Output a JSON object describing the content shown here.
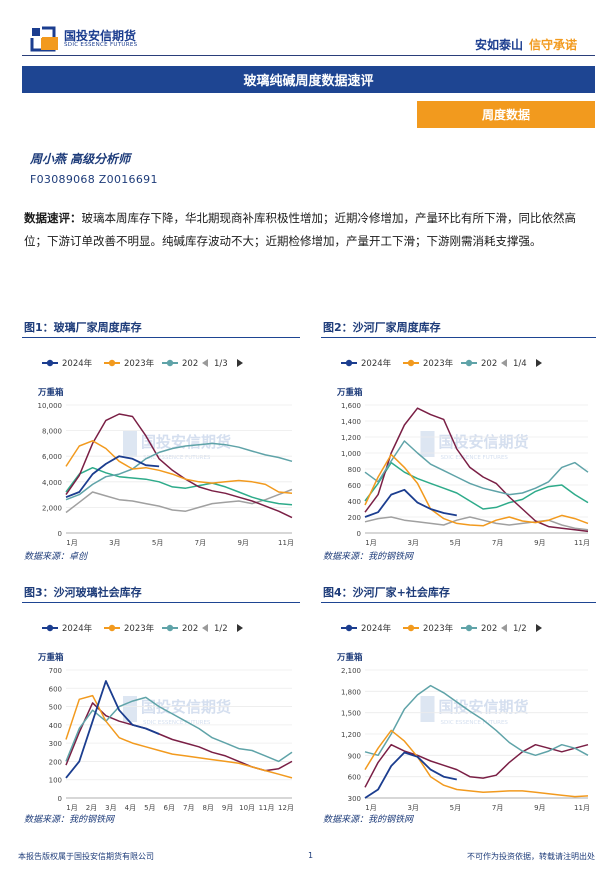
{
  "header": {
    "logo_cn": "国投安信期货",
    "logo_en": "SDIC ESSENCE FUTURES",
    "slogan_part1": "安如泰山",
    "slogan_part2": "信守承诺"
  },
  "report": {
    "title": "玻璃纯碱周度数据速评",
    "section_tab": "周度数据",
    "analyst_name": "周小燕  高级分析师",
    "analyst_id": "F03089068  Z0016691",
    "comment_label": "数据速评：",
    "comment_text": "玻璃本周库存下降，华北期现商补库积极性增加；近期冷修增加，产量环比有所下滑，同比依然高位；下游订单改善不明显。纯碱库存波动不大；近期检修增加，产量开工下滑；下游刚需消耗支撑强。"
  },
  "watermark": {
    "cn": "国投安信期货",
    "en": "SDIC ESSENCE FUTURES"
  },
  "colors": {
    "s2024": "#1b3d8f",
    "s2023": "#f29a1e",
    "s2022": "#5fa3a8",
    "s2021": "#7a1f45",
    "s2020": "#2eab8a",
    "s2019": "#a0a0a0"
  },
  "footer": {
    "left": "本报告版权属于国投安信期货有限公司",
    "page": "1",
    "right": "不可作为投资依据，转载请注明出处"
  },
  "chart_data": [
    {
      "type": "line",
      "title": "图1：玻璃厂家周度库存",
      "unit": "万重箱",
      "legend": [
        "2024年",
        "2023年",
        "202"
      ],
      "pager": "1/3",
      "source": "数据来源：卓创",
      "x_ticks": [
        "1月",
        "3月",
        "5月",
        "7月",
        "9月",
        "11月"
      ],
      "ylim": [
        0,
        10000
      ],
      "yticks": [
        0,
        2000,
        4000,
        6000,
        8000,
        10000
      ],
      "ytick_labels": [
        "0",
        "2,000",
        "4,000",
        "6,000",
        "8,000",
        "10,000"
      ],
      "series": [
        {
          "key": "s2024",
          "values": [
            2800,
            3200,
            4600,
            5400,
            6000,
            5800,
            5300,
            5200
          ]
        },
        {
          "key": "s2023",
          "values": [
            5200,
            6800,
            7200,
            6600,
            5600,
            5000,
            5100,
            4900,
            4600,
            4200,
            4000,
            3900,
            4000,
            4100,
            4000,
            3800,
            3200,
            3100
          ]
        },
        {
          "key": "s2022",
          "values": [
            2600,
            3000,
            3800,
            4400,
            4600,
            5000,
            5800,
            6300,
            6600,
            6800,
            6900,
            7000,
            6900,
            6700,
            6400,
            6100,
            5900,
            5600
          ]
        },
        {
          "key": "s2021",
          "values": [
            3000,
            4500,
            7000,
            8800,
            9300,
            9100,
            7600,
            5800,
            4900,
            4200,
            3600,
            3300,
            3100,
            2800,
            2500,
            2100,
            1700,
            1200
          ]
        },
        {
          "key": "s2020",
          "values": [
            3200,
            4600,
            5100,
            4700,
            4400,
            4300,
            4200,
            4000,
            3600,
            3500,
            3700,
            3900,
            3600,
            3200,
            2800,
            2500,
            2300,
            2200
          ]
        },
        {
          "key": "s2019",
          "values": [
            1600,
            2400,
            3200,
            2900,
            2600,
            2500,
            2300,
            2100,
            1800,
            1700,
            2000,
            2300,
            2400,
            2500,
            2300,
            2600,
            3000,
            3400
          ]
        }
      ]
    },
    {
      "type": "line",
      "title": "图2：沙河厂家周度库存",
      "unit": "万重箱",
      "legend": [
        "2024年",
        "2023年",
        "202"
      ],
      "pager": "1/4",
      "source": "数据来源：我的钢铁网",
      "x_ticks": [
        "1月",
        "3月",
        "5月",
        "7月",
        "9月",
        "11月"
      ],
      "ylim": [
        0,
        1600
      ],
      "yticks": [
        0,
        200,
        400,
        600,
        800,
        1000,
        1200,
        1400,
        1600
      ],
      "ytick_labels": [
        "0",
        "200",
        "400",
        "600",
        "800",
        "1,000",
        "1,200",
        "1,400",
        "1,600"
      ],
      "series": [
        {
          "key": "s2024",
          "values": [
            200,
            260,
            480,
            540,
            380,
            300,
            250,
            220
          ]
        },
        {
          "key": "s2023",
          "values": [
            350,
            700,
            980,
            820,
            620,
            300,
            180,
            120,
            100,
            90,
            160,
            200,
            150,
            130,
            160,
            220,
            180,
            120
          ]
        },
        {
          "key": "s2022",
          "values": [
            760,
            640,
            900,
            1150,
            1000,
            860,
            780,
            700,
            620,
            560,
            520,
            480,
            500,
            560,
            640,
            820,
            880,
            760
          ]
        },
        {
          "key": "s2021",
          "values": [
            260,
            480,
            1000,
            1350,
            1560,
            1480,
            1420,
            1050,
            820,
            700,
            620,
            450,
            300,
            150,
            80,
            60,
            40,
            20
          ]
        },
        {
          "key": "s2020",
          "values": [
            400,
            620,
            880,
            760,
            680,
            620,
            560,
            500,
            400,
            300,
            320,
            380,
            420,
            520,
            580,
            600,
            480,
            380
          ]
        },
        {
          "key": "s2019",
          "values": [
            140,
            180,
            200,
            160,
            140,
            120,
            100,
            160,
            200,
            160,
            120,
            100,
            120,
            140,
            160,
            100,
            60,
            40
          ]
        }
      ]
    },
    {
      "type": "line",
      "title": "图3：沙河玻璃社会库存",
      "unit": "万重箱",
      "legend": [
        "2024年",
        "2023年",
        "202"
      ],
      "pager": "1/2",
      "source": "数据来源：我的钢铁网",
      "x_ticks": [
        "1月",
        "2月",
        "3月",
        "4月",
        "5月",
        "6月",
        "7月",
        "8月",
        "9月",
        "10月",
        "11月",
        "12月"
      ],
      "ylim": [
        0,
        700
      ],
      "yticks": [
        0,
        100,
        200,
        300,
        400,
        500,
        600,
        700
      ],
      "ytick_labels": [
        "0",
        "100",
        "200",
        "300",
        "400",
        "500",
        "600",
        "700"
      ],
      "series": [
        {
          "key": "s2024",
          "values": [
            110,
            200,
            420,
            640,
            480,
            400,
            380,
            350
          ]
        },
        {
          "key": "s2023",
          "values": [
            320,
            540,
            560,
            420,
            330,
            300,
            280,
            260,
            240,
            230,
            220,
            210,
            200,
            190,
            170,
            150,
            130,
            110
          ]
        },
        {
          "key": "s2022",
          "values": [
            200,
            380,
            480,
            420,
            500,
            530,
            550,
            500,
            460,
            420,
            380,
            330,
            300,
            270,
            260,
            230,
            200,
            250
          ]
        },
        {
          "key": "s2021",
          "values": [
            180,
            360,
            520,
            450,
            420,
            400,
            380,
            350,
            320,
            300,
            280,
            250,
            230,
            200,
            170,
            150,
            160,
            200
          ]
        }
      ]
    },
    {
      "type": "line",
      "title": "图4：沙河厂家+社会库存",
      "unit": "万重箱",
      "legend": [
        "2024年",
        "2023年",
        "202"
      ],
      "pager": "1/2",
      "source": "数据来源：我的钢铁网",
      "x_ticks": [
        "1月",
        "3月",
        "5月",
        "7月",
        "9月",
        "11月"
      ],
      "ylim": [
        300,
        2100
      ],
      "yticks": [
        300,
        600,
        900,
        1200,
        1500,
        1800,
        2100
      ],
      "ytick_labels": [
        "300",
        "600",
        "900",
        "1,200",
        "1,500",
        "1,800",
        "2,100"
      ],
      "series": [
        {
          "key": "s2024",
          "values": [
            300,
            420,
            750,
            940,
            880,
            700,
            600,
            560
          ]
        },
        {
          "key": "s2023",
          "values": [
            700,
            1000,
            1250,
            1100,
            880,
            600,
            480,
            420,
            400,
            380,
            390,
            400,
            400,
            380,
            360,
            340,
            320,
            330
          ]
        },
        {
          "key": "s2022",
          "values": [
            950,
            900,
            1200,
            1550,
            1750,
            1880,
            1780,
            1650,
            1520,
            1400,
            1250,
            1080,
            960,
            900,
            960,
            1050,
            1000,
            900
          ]
        },
        {
          "key": "s2021",
          "values": [
            450,
            800,
            1050,
            960,
            900,
            820,
            760,
            700,
            600,
            580,
            620,
            800,
            950,
            1050,
            1000,
            950,
            1000,
            1050
          ]
        }
      ]
    }
  ]
}
